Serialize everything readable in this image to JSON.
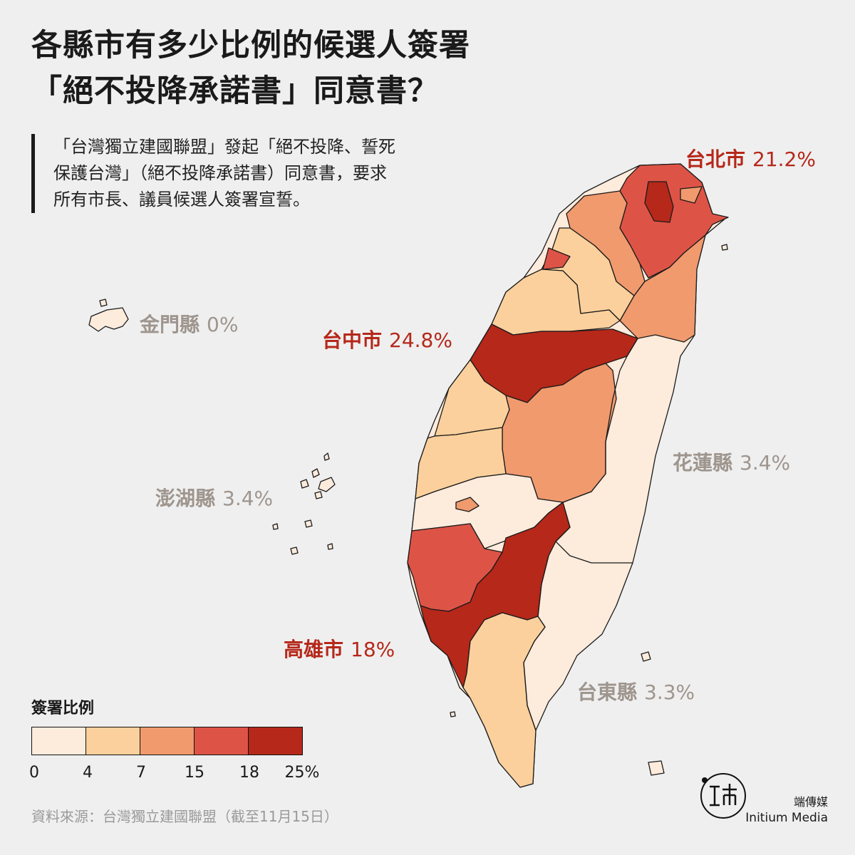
{
  "title": {
    "line1": "各縣市有多少比例的候選人簽署",
    "line2": "「絕不投降承諾書」同意書？"
  },
  "intro": {
    "line1": "「台灣獨立建國聯盟」發起「絕不投降、誓死",
    "line2": "保護台灣」（絕不投降承諾書）同意書，要求",
    "line3": "所有市長、議員候選人簽署宣誓。"
  },
  "labels": {
    "taipei": {
      "name": "台北市",
      "value": "21.2%"
    },
    "taichung": {
      "name": "台中市",
      "value": "24.8%"
    },
    "kinmen": {
      "name": "金門縣",
      "value": "0%"
    },
    "hualien": {
      "name": "花蓮縣",
      "value": "3.4%"
    },
    "penghu": {
      "name": "澎湖縣",
      "value": "3.4%"
    },
    "kaohsiung": {
      "name": "高雄市",
      "value": "18%"
    },
    "taitung": {
      "name": "台東縣",
      "value": "3.3%"
    }
  },
  "legend": {
    "title": "簽署比例",
    "colors": [
      "#fdebdc",
      "#fbd09c",
      "#f09a6e",
      "#dd5447",
      "#b5281a"
    ],
    "ticks": [
      "0",
      "4",
      "7",
      "15",
      "18",
      "25%"
    ]
  },
  "label_colors": {
    "high": "#b5281a",
    "low": "#9e958e"
  },
  "source": "資料來源：台灣獨立建國聯盟（截至11月15日）",
  "brand": {
    "cn": "端傳媒",
    "en": "Initium Media"
  }
}
